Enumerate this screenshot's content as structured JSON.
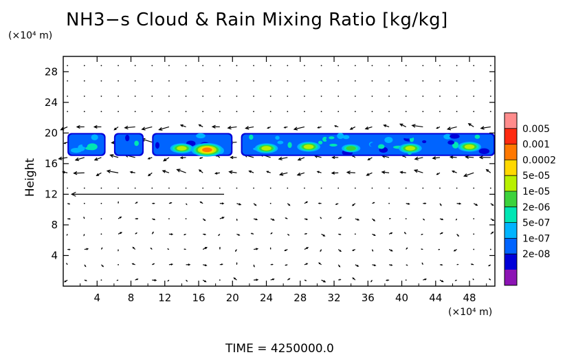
{
  "chart_data": {
    "type": "heatmap",
    "title": "NH3−s Cloud & Rain Mixing Ratio [kg/kg]",
    "ylabel": "Height",
    "y_unit": "(×10⁴ m)",
    "x_unit": "(×10⁴ m)",
    "xlim": [
      0,
      51
    ],
    "ylim": [
      0,
      30
    ],
    "x_ticks": [
      4,
      8,
      12,
      16,
      20,
      24,
      28,
      32,
      36,
      40,
      44,
      48
    ],
    "y_ticks": [
      4,
      8,
      12,
      16,
      20,
      24,
      28
    ],
    "colorbar": {
      "labels": [
        "0.005",
        "0.001",
        "0.0002",
        "5e-05",
        "1e-05",
        "2e-06",
        "5e-07",
        "1e-07",
        "2e-08"
      ],
      "colors": [
        "#ff8c8c",
        "#ff2a10",
        "#ff7800",
        "#ffd800",
        "#b8f000",
        "#3cd23c",
        "#00e6b4",
        "#00b4ff",
        "#0064ff",
        "#0000d8",
        "#8c14b4"
      ]
    },
    "cloud_layer": {
      "y_range": [
        17,
        20
      ],
      "segments": [
        [
          0.5,
          5
        ],
        [
          6,
          9.5
        ],
        [
          10.5,
          20
        ],
        [
          21,
          51
        ]
      ],
      "cores": [
        {
          "x": 17,
          "y": 17.8,
          "level": "0.001"
        },
        {
          "x": 14,
          "y": 18.0,
          "level": "5e-05"
        },
        {
          "x": 24,
          "y": 18.0,
          "level": "5e-05"
        },
        {
          "x": 29,
          "y": 18.2,
          "level": "5e-05"
        },
        {
          "x": 34,
          "y": 18.0,
          "level": "1e-05"
        },
        {
          "x": 41,
          "y": 18.0,
          "level": "5e-05"
        },
        {
          "x": 48,
          "y": 18.2,
          "level": "5e-05"
        }
      ]
    },
    "wind_field": {
      "strong_band_y": 12,
      "note": "vectors"
    },
    "time_label": "TIME  =  4250000.0"
  }
}
